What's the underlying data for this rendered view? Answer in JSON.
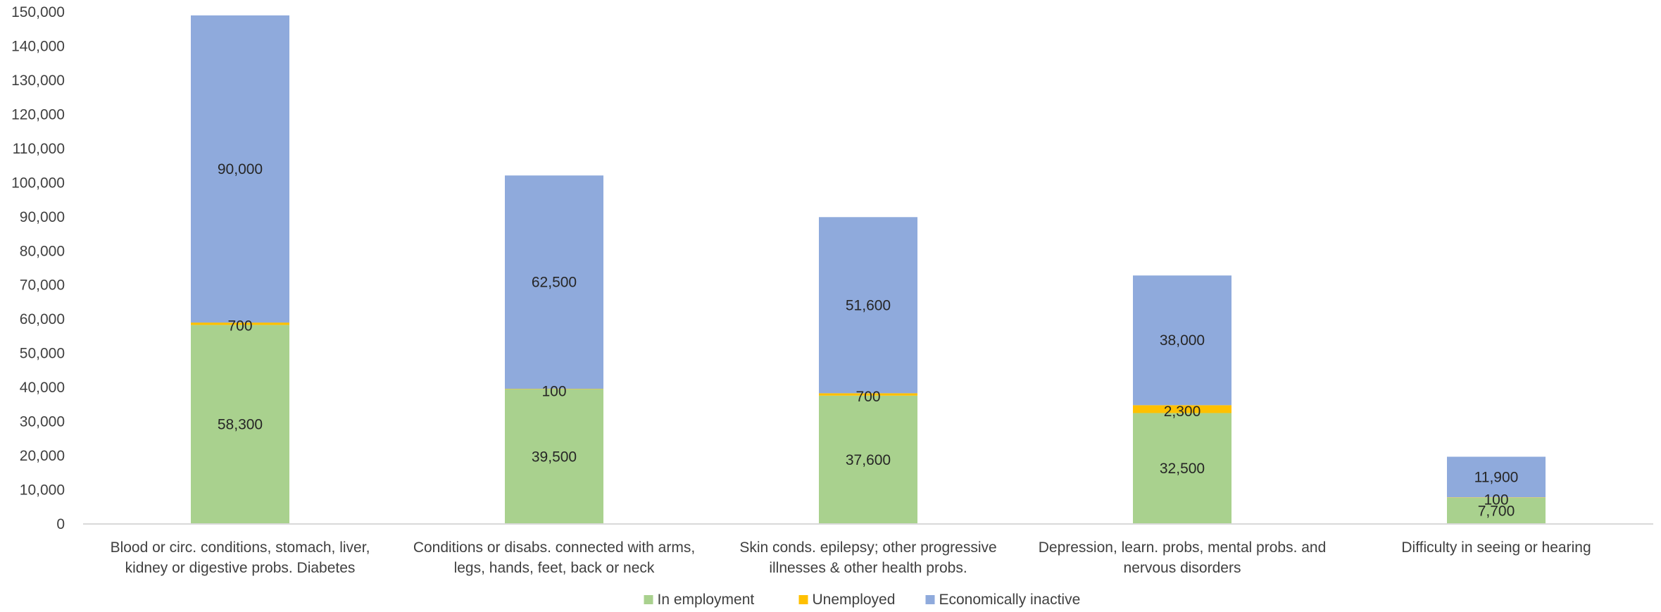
{
  "chart_data": {
    "type": "bar",
    "stacked": true,
    "categories": [
      [
        "Blood or circ. conditions, stomach, liver,",
        "kidney or digestive probs. Diabetes"
      ],
      [
        "Conditions or disabs. connected with arms,",
        "legs, hands, feet, back or neck"
      ],
      [
        "Skin conds. epilepsy; other progressive",
        "illnesses & other health probs."
      ],
      [
        "Depression, learn. probs, mental probs. and",
        "nervous disorders"
      ],
      [
        "Difficulty in seeing or hearing"
      ]
    ],
    "series": [
      {
        "name": "In employment",
        "color": "#a9d18e",
        "values": [
          58300,
          39500,
          37600,
          32500,
          7700
        ],
        "labels": [
          "58,300",
          "39,500",
          "37,600",
          "32,500",
          "7,700"
        ]
      },
      {
        "name": "Unemployed",
        "color": "#ffc000",
        "values": [
          700,
          100,
          700,
          2300,
          100
        ],
        "labels": [
          "700",
          "100",
          "700",
          "2,300",
          "100"
        ]
      },
      {
        "name": "Economically inactive",
        "color": "#8faadc",
        "values": [
          90000,
          62500,
          51600,
          38000,
          11900
        ],
        "labels": [
          "90,000",
          "62,500",
          "51,600",
          "38,000",
          "11,900"
        ]
      }
    ],
    "ylim": [
      0,
      150000
    ],
    "yticks": [
      0,
      10000,
      20000,
      30000,
      40000,
      50000,
      60000,
      70000,
      80000,
      90000,
      100000,
      110000,
      120000,
      130000,
      140000,
      150000
    ],
    "ytick_labels": [
      "0",
      "10,000",
      "20,000",
      "30,000",
      "40,000",
      "50,000",
      "60,000",
      "70,000",
      "80,000",
      "90,000",
      "100,000",
      "110,000",
      "120,000",
      "130,000",
      "140,000",
      "150,000"
    ],
    "title": "",
    "xlabel": "",
    "ylabel": "",
    "grid": false,
    "legend_position": "bottom"
  }
}
